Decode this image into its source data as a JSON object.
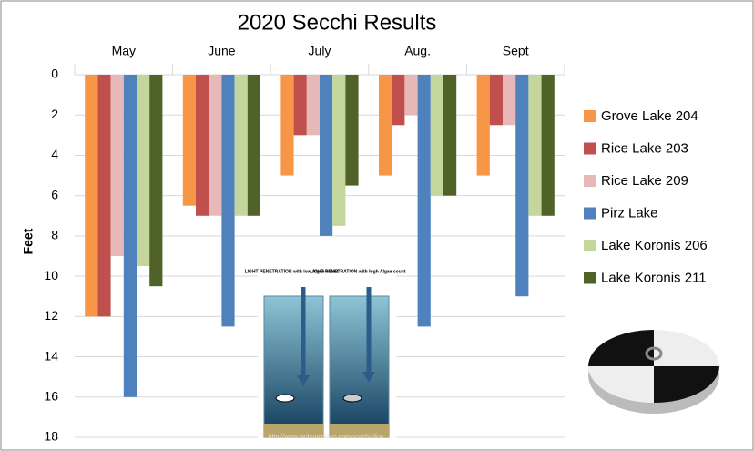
{
  "chart_data": {
    "type": "bar",
    "title": "2020 Secchi Results",
    "y_label": "Feet",
    "categories": [
      "May",
      "June",
      "July",
      "Aug.",
      "Sept"
    ],
    "series": [
      {
        "name": "Grove Lake 204",
        "color": "#f79646",
        "values": [
          12,
          6.5,
          5,
          5,
          5
        ]
      },
      {
        "name": "Rice Lake 203",
        "color": "#c0504d",
        "values": [
          12,
          7,
          3,
          2.5,
          2.5
        ]
      },
      {
        "name": "Rice Lake 209",
        "color": "#e6b9b8",
        "values": [
          9,
          7,
          3,
          2,
          2.5
        ]
      },
      {
        "name": "Pirz Lake",
        "color": "#4f81bd",
        "values": [
          16,
          12.5,
          8,
          12.5,
          11
        ]
      },
      {
        "name": "Lake Koronis 206",
        "color": "#c3d69b",
        "values": [
          9.5,
          7,
          7.5,
          6,
          7
        ]
      },
      {
        "name": "Lake Koronis 211",
        "color": "#4f6228",
        "values": [
          10.5,
          7,
          5.5,
          6,
          7
        ]
      }
    ],
    "ylim": [
      0,
      18
    ],
    "yticks": [
      0,
      2,
      4,
      6,
      8,
      10,
      12,
      14,
      16,
      18
    ],
    "y_inverted": true,
    "grid": true,
    "legend": "right",
    "annotations": [
      "LIGHT PENETRATION with low Algae count",
      "LIGHT PENETRATION with high Algae count",
      "http://www.writeopinions.com/secchi-disc"
    ]
  }
}
